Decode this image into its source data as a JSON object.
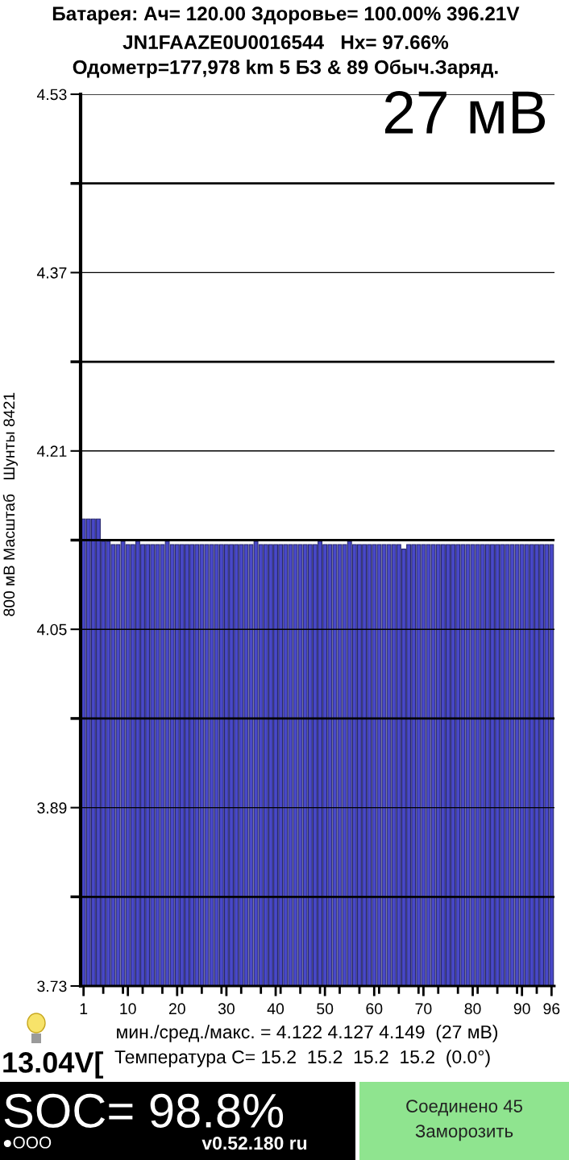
{
  "chart_data": {
    "type": "bar",
    "title": "Батарея: Ач= 120.00 Здоровье= 100.00% 396.21V",
    "subtitle": "JN1FAAZE0U0016544   Hx= 97.66%\nОдометр=177,978 km 5 БЗ & 89 Обыч.Заряд.",
    "ylabel": "800 мВ Масштаб   Шунты 8421",
    "annotations": [
      "27 мВ",
      "мин./сред./макс. = 4.122 4.127 4.149  (27 мВ)",
      "Температура C= 15.2  15.2  15.2  15.2  (0.0°)",
      "13.04V[",
      "SOC= 98.8%",
      "●OOO",
      "v0.52.180 ru",
      "Соединено 45",
      "Заморозить"
    ],
    "categories": [
      "1",
      null,
      null,
      null,
      null,
      null,
      null,
      null,
      null,
      "10",
      null,
      null,
      null,
      null,
      null,
      null,
      null,
      null,
      null,
      "20",
      null,
      null,
      null,
      null,
      null,
      null,
      null,
      null,
      null,
      "30",
      null,
      null,
      null,
      null,
      null,
      null,
      null,
      null,
      null,
      "40",
      null,
      null,
      null,
      null,
      null,
      null,
      null,
      null,
      null,
      "50",
      null,
      null,
      null,
      null,
      null,
      null,
      null,
      null,
      null,
      "60",
      null,
      null,
      null,
      null,
      null,
      null,
      null,
      null,
      null,
      "70",
      null,
      null,
      null,
      null,
      null,
      null,
      null,
      null,
      null,
      "80",
      null,
      null,
      null,
      null,
      null,
      null,
      null,
      null,
      null,
      "90",
      null,
      null,
      null,
      null,
      null,
      "96"
    ],
    "values": [
      4.149,
      4.149,
      4.149,
      4.149,
      4.129,
      4.129,
      4.126,
      4.126,
      4.129,
      4.126,
      4.126,
      4.129,
      4.126,
      4.126,
      4.126,
      4.126,
      4.126,
      4.129,
      4.126,
      4.126,
      4.126,
      4.126,
      4.126,
      4.126,
      4.126,
      4.126,
      4.126,
      4.126,
      4.126,
      4.126,
      4.126,
      4.126,
      4.126,
      4.126,
      4.126,
      4.129,
      4.126,
      4.126,
      4.126,
      4.126,
      4.126,
      4.126,
      4.126,
      4.126,
      4.126,
      4.126,
      4.126,
      4.126,
      4.129,
      4.126,
      4.126,
      4.126,
      4.126,
      4.126,
      4.129,
      4.126,
      4.126,
      4.126,
      4.126,
      4.126,
      4.126,
      4.126,
      4.126,
      4.126,
      4.126,
      4.122,
      4.126,
      4.126,
      4.126,
      4.126,
      4.126,
      4.126,
      4.126,
      4.126,
      4.126,
      4.126,
      4.126,
      4.126,
      4.126,
      4.126,
      4.126,
      4.126,
      4.126,
      4.126,
      4.126,
      4.126,
      4.126,
      4.126,
      4.126,
      4.126,
      4.126,
      4.126,
      4.126,
      4.126,
      4.126,
      4.126
    ],
    "color": "#4848c8",
    "ylim": [
      3.73,
      4.53
    ],
    "yticks": [
      3.73,
      {
        "value": 3.81,
        "label": null
      },
      3.89,
      {
        "value": 3.97,
        "label": null
      },
      4.05,
      {
        "value": 4.13,
        "label": null
      },
      4.21,
      {
        "value": 4.29,
        "label": null
      },
      4.37,
      {
        "value": 4.45,
        "label": null
      },
      4.53
    ],
    "grid": "y"
  }
}
